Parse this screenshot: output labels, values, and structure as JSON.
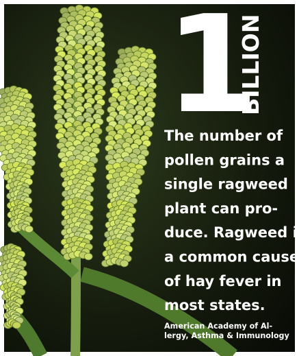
{
  "headline": {
    "number": "1",
    "unit": "BILLION"
  },
  "body_lines": [
    "The number of",
    "pollen grains a",
    "single ragweed",
    "plant can pro-",
    "duce. Ragweed is",
    "a common cause",
    "of hay fever in",
    "most states."
  ],
  "source_lines": [
    "American Academy of Al-",
    "lergy, Asthma & Immunology"
  ]
}
